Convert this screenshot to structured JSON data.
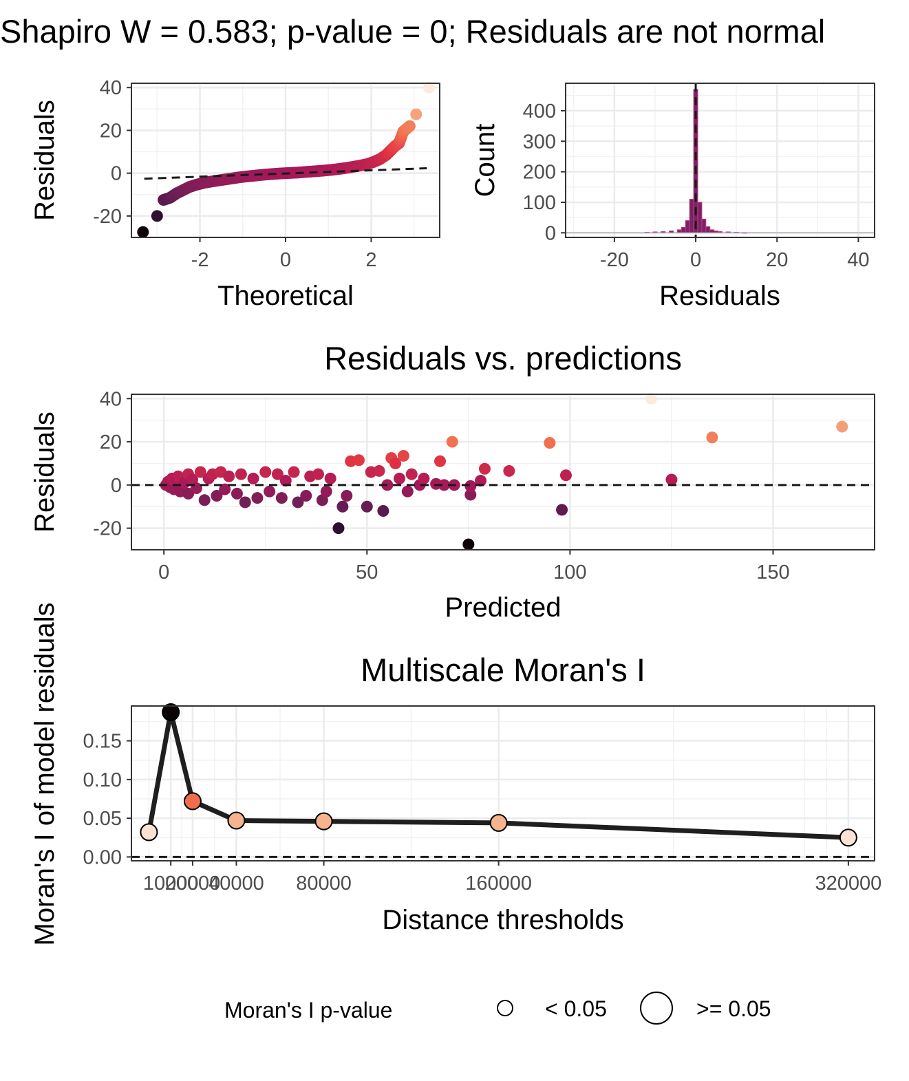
{
  "top_title": "Shapiro W = 0.583; p-value = 0; Residuals are not normal",
  "chart_data": [
    {
      "type": "scatter",
      "subtype": "qq-plot",
      "title": "",
      "xlabel": "Theoretical",
      "ylabel": "Residuals",
      "xlim": [
        -3.6,
        3.6
      ],
      "ylim": [
        -30,
        42
      ],
      "xticks": [
        "-2",
        "0",
        "2"
      ],
      "yticks": [
        "-20",
        "0",
        "20",
        "40"
      ],
      "grid": true,
      "reference_line": {
        "style": "dashed",
        "from": [
          -3.3,
          -2.6
        ],
        "to": [
          3.3,
          2.3
        ]
      },
      "colormap": "rocket (dark purple to pale peach by residual)",
      "points": [
        {
          "x": -3.33,
          "y": -27.5
        },
        {
          "x": -3.0,
          "y": -20.0
        },
        {
          "x": -2.85,
          "y": -12.5
        },
        {
          "x": -2.7,
          "y": -11.5
        },
        {
          "x": -2.55,
          "y": -9.5
        },
        {
          "x": -2.4,
          "y": -8.0
        },
        {
          "x": -2.25,
          "y": -6.5
        },
        {
          "x": -2.1,
          "y": -5.5
        },
        {
          "x": -1.9,
          "y": -4.5
        },
        {
          "x": -1.7,
          "y": -3.8
        },
        {
          "x": -1.5,
          "y": -3.2
        },
        {
          "x": -1.3,
          "y": -2.6
        },
        {
          "x": -1.1,
          "y": -2.0
        },
        {
          "x": -0.9,
          "y": -1.5
        },
        {
          "x": -0.7,
          "y": -1.1
        },
        {
          "x": -0.5,
          "y": -0.7
        },
        {
          "x": -0.3,
          "y": -0.4
        },
        {
          "x": -0.1,
          "y": -0.1
        },
        {
          "x": 0.1,
          "y": 0.1
        },
        {
          "x": 0.3,
          "y": 0.3
        },
        {
          "x": 0.5,
          "y": 0.6
        },
        {
          "x": 0.7,
          "y": 0.9
        },
        {
          "x": 0.9,
          "y": 1.2
        },
        {
          "x": 1.1,
          "y": 1.6
        },
        {
          "x": 1.3,
          "y": 2.1
        },
        {
          "x": 1.5,
          "y": 2.7
        },
        {
          "x": 1.7,
          "y": 3.4
        },
        {
          "x": 1.9,
          "y": 4.2
        },
        {
          "x": 2.05,
          "y": 5.2
        },
        {
          "x": 2.2,
          "y": 6.5
        },
        {
          "x": 2.35,
          "y": 8.5
        },
        {
          "x": 2.45,
          "y": 10.5
        },
        {
          "x": 2.55,
          "y": 12.5
        },
        {
          "x": 2.65,
          "y": 14.0
        },
        {
          "x": 2.75,
          "y": 19.5
        },
        {
          "x": 2.9,
          "y": 22.0
        },
        {
          "x": 3.05,
          "y": 27.5
        },
        {
          "x": 3.35,
          "y": 40.0
        }
      ]
    },
    {
      "type": "bar",
      "subtype": "histogram",
      "title": "",
      "xlabel": "Residuals",
      "ylabel": "Count",
      "xlim": [
        -32,
        44
      ],
      "ylim": [
        -15,
        490
      ],
      "xticks": [
        "-20",
        "0",
        "20",
        "40"
      ],
      "yticks": [
        "0",
        "100",
        "200",
        "300",
        "400"
      ],
      "grid": true,
      "reference_line": {
        "style": "dashed",
        "x": 0
      },
      "bins": [
        {
          "x": -12,
          "count": 2
        },
        {
          "x": -10,
          "count": 3
        },
        {
          "x": -8,
          "count": 4
        },
        {
          "x": -6,
          "count": 6
        },
        {
          "x": -4,
          "count": 10
        },
        {
          "x": -3,
          "count": 18
        },
        {
          "x": -2,
          "count": 40
        },
        {
          "x": -1,
          "count": 110
        },
        {
          "x": 0,
          "count": 470
        },
        {
          "x": 1,
          "count": 100
        },
        {
          "x": 2,
          "count": 45
        },
        {
          "x": 3,
          "count": 20
        },
        {
          "x": 4,
          "count": 10
        },
        {
          "x": 5,
          "count": 6
        },
        {
          "x": 6,
          "count": 4
        },
        {
          "x": 8,
          "count": 3
        },
        {
          "x": 10,
          "count": 2
        },
        {
          "x": 12,
          "count": 1
        }
      ]
    },
    {
      "type": "scatter",
      "title": "Residuals vs. predictions",
      "xlabel": "Predicted",
      "ylabel": "Residuals",
      "xlim": [
        -8,
        175
      ],
      "ylim": [
        -30,
        42
      ],
      "xticks": [
        "0",
        "50",
        "100",
        "150"
      ],
      "yticks": [
        "-20",
        "0",
        "20",
        "40"
      ],
      "grid": true,
      "reference_line": {
        "style": "dashed",
        "y": 0
      },
      "points": [
        {
          "x": 0.5,
          "y": 0
        },
        {
          "x": 1,
          "y": 1.5
        },
        {
          "x": 1.5,
          "y": -1
        },
        {
          "x": 2,
          "y": 3
        },
        {
          "x": 2.5,
          "y": -2
        },
        {
          "x": 3,
          "y": 2
        },
        {
          "x": 3.5,
          "y": 4
        },
        {
          "x": 4,
          "y": -3
        },
        {
          "x": 5,
          "y": 1
        },
        {
          "x": 6,
          "y": 5
        },
        {
          "x": 6,
          "y": -4
        },
        {
          "x": 7,
          "y": 2.5
        },
        {
          "x": 8,
          "y": -1.5
        },
        {
          "x": 9,
          "y": 6
        },
        {
          "x": 10,
          "y": -7
        },
        {
          "x": 11,
          "y": 3
        },
        {
          "x": 12,
          "y": 5
        },
        {
          "x": 13,
          "y": -5
        },
        {
          "x": 14,
          "y": 6
        },
        {
          "x": 15,
          "y": -2
        },
        {
          "x": 16,
          "y": 4
        },
        {
          "x": 18,
          "y": -4
        },
        {
          "x": 19,
          "y": 5
        },
        {
          "x": 20,
          "y": -8
        },
        {
          "x": 22,
          "y": 3
        },
        {
          "x": 23,
          "y": -6
        },
        {
          "x": 25,
          "y": 6
        },
        {
          "x": 26,
          "y": -3
        },
        {
          "x": 28,
          "y": 5
        },
        {
          "x": 29,
          "y": -6
        },
        {
          "x": 30,
          "y": 2
        },
        {
          "x": 32,
          "y": 6
        },
        {
          "x": 33,
          "y": -8
        },
        {
          "x": 35,
          "y": -5
        },
        {
          "x": 36,
          "y": 4
        },
        {
          "x": 38,
          "y": 5
        },
        {
          "x": 39,
          "y": -7
        },
        {
          "x": 40,
          "y": -3
        },
        {
          "x": 41,
          "y": 3
        },
        {
          "x": 43,
          "y": -20
        },
        {
          "x": 44,
          "y": -10
        },
        {
          "x": 45,
          "y": -5
        },
        {
          "x": 46,
          "y": 11
        },
        {
          "x": 48,
          "y": 11.5
        },
        {
          "x": 50,
          "y": -10
        },
        {
          "x": 51,
          "y": 6
        },
        {
          "x": 53,
          "y": 6.5
        },
        {
          "x": 54,
          "y": -12
        },
        {
          "x": 55,
          "y": 0
        },
        {
          "x": 56,
          "y": 12.5
        },
        {
          "x": 57,
          "y": 10
        },
        {
          "x": 58,
          "y": 3
        },
        {
          "x": 59,
          "y": 13.5
        },
        {
          "x": 60,
          "y": -3
        },
        {
          "x": 61,
          "y": 5
        },
        {
          "x": 63,
          "y": 0
        },
        {
          "x": 64,
          "y": 3
        },
        {
          "x": 67,
          "y": 0.5
        },
        {
          "x": 68,
          "y": 11
        },
        {
          "x": 69,
          "y": 0
        },
        {
          "x": 71,
          "y": 20
        },
        {
          "x": 71.5,
          "y": 0
        },
        {
          "x": 75,
          "y": -27.5
        },
        {
          "x": 75.5,
          "y": -4.5
        },
        {
          "x": 75.5,
          "y": -0.5
        },
        {
          "x": 78,
          "y": 2
        },
        {
          "x": 79,
          "y": 7.5
        },
        {
          "x": 85,
          "y": 6.5
        },
        {
          "x": 95,
          "y": 19.5
        },
        {
          "x": 98,
          "y": -11.5
        },
        {
          "x": 99,
          "y": 4.5
        },
        {
          "x": 120,
          "y": 40
        },
        {
          "x": 125,
          "y": 2.5
        },
        {
          "x": 135,
          "y": 22
        },
        {
          "x": 167,
          "y": 27
        }
      ]
    },
    {
      "type": "line",
      "title": "Multiscale Moran's I",
      "xlabel": "Distance thresholds",
      "ylabel": "Moran's I of model residuals",
      "xlim": [
        -8000,
        332000
      ],
      "ylim": [
        -0.005,
        0.195
      ],
      "xticks": [
        "10000",
        "20000",
        "40000",
        "80000",
        "160000",
        "320000"
      ],
      "yticks": [
        "0.00",
        "0.05",
        "0.10",
        "0.15"
      ],
      "grid": true,
      "reference_line": {
        "style": "dashed",
        "y": 0
      },
      "x": [
        0,
        10000,
        20000,
        40000,
        80000,
        160000,
        320000
      ],
      "y": [
        0.032,
        0.187,
        0.072,
        0.047,
        0.046,
        0.044,
        0.025
      ],
      "point_colors": [
        "#fbe2d4",
        "#0b0405",
        "#f26c4f",
        "#f6b48e",
        "#f6b48e",
        "#f6b48e",
        "#fbe2d4"
      ],
      "legend": {
        "title": "Moran's I p-value",
        "position": "bottom",
        "items": [
          {
            "label": "< 0.05",
            "size": "small"
          },
          {
            "label": ">= 0.05",
            "size": "large"
          }
        ]
      }
    }
  ]
}
